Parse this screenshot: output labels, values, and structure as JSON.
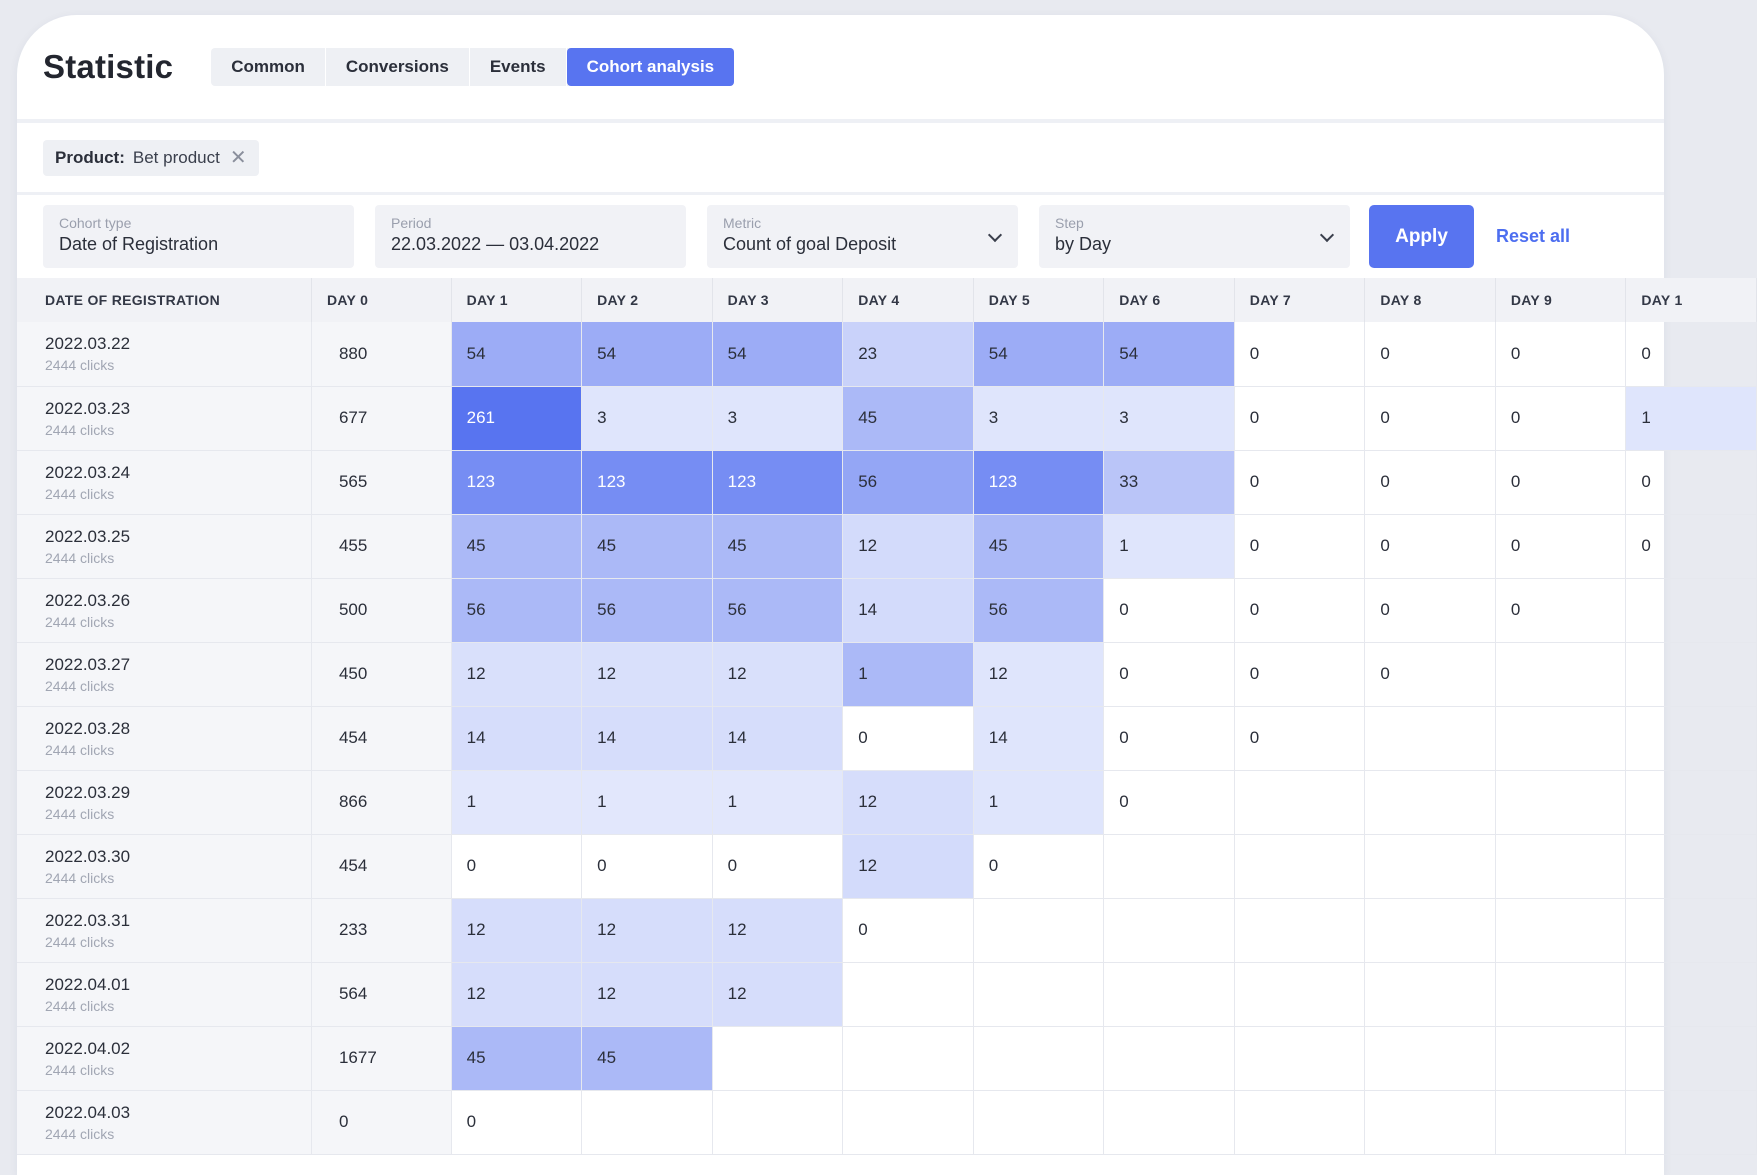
{
  "header": {
    "title": "Statistic",
    "tabs": [
      {
        "label": "Common",
        "active": false
      },
      {
        "label": "Conversions",
        "active": false
      },
      {
        "label": "Events",
        "active": false
      },
      {
        "label": "Cohort analysis",
        "active": true
      }
    ]
  },
  "filters": {
    "chip": {
      "key": "Product:",
      "value": "Bet product"
    }
  },
  "controls": {
    "cohort_type": {
      "label": "Cohort type",
      "value": "Date of Registration"
    },
    "period": {
      "label": "Period",
      "value": "22.03.2022 — 03.04.2022"
    },
    "metric": {
      "label": "Metric",
      "value": "Count of goal Deposit"
    },
    "step": {
      "label": "Step",
      "value": "by Day"
    },
    "apply_label": "Apply",
    "reset_label": "Reset all"
  },
  "colors": {
    "accent": "#5874f0",
    "heat_max": "#5874f0",
    "heat_min": "#eef1fd",
    "link": "#4d6ef0"
  },
  "table": {
    "columns": [
      "DATE OF REGISTRATION",
      "DAY 0",
      "DAY 1",
      "DAY 2",
      "DAY 3",
      "DAY 4",
      "DAY 5",
      "DAY 6",
      "DAY 7",
      "DAY 8",
      "DAY 9",
      "DAY 1"
    ],
    "rows": [
      {
        "date": "2022.03.22",
        "sub": "2444 clicks",
        "day0": "880",
        "cells": [
          "54",
          "54",
          "54",
          "23",
          "54",
          "54",
          "0",
          "0",
          "0",
          "0"
        ],
        "heat": [
          0.55,
          0.55,
          0.55,
          0.25,
          0.55,
          0.55,
          0,
          0,
          0,
          0
        ]
      },
      {
        "date": "2022.03.23",
        "sub": "2444 clicks",
        "day0": "677",
        "cells": [
          "261",
          "3",
          "3",
          "45",
          "3",
          "3",
          "0",
          "0",
          "0",
          "1"
        ],
        "heat": [
          1.0,
          0.1,
          0.1,
          0.45,
          0.1,
          0.1,
          0,
          0,
          0,
          0.1
        ]
      },
      {
        "date": "2022.03.24",
        "sub": "2444 clicks",
        "day0": "565",
        "cells": [
          "123",
          "123",
          "123",
          "56",
          "123",
          "33"
        ],
        "heat": [
          0.8,
          0.8,
          0.8,
          0.6,
          0.8,
          0.35
        ],
        "rest": [
          "0",
          "0",
          "0",
          "0"
        ]
      },
      {
        "date": "2022.03.25",
        "sub": "2444 clicks",
        "day0": "455",
        "cells": [
          "45",
          "45",
          "45",
          "12",
          "45",
          "1"
        ],
        "heat": [
          0.45,
          0.45,
          0.45,
          0.18,
          0.45,
          0.1
        ],
        "rest": [
          "0",
          "0",
          "0",
          "0"
        ]
      },
      {
        "date": "2022.03.26",
        "sub": "2444 clicks",
        "day0": "500",
        "cells": [
          "56",
          "56",
          "56",
          "14",
          "56",
          "0",
          "0",
          "0",
          "0"
        ],
        "heat": [
          0.45,
          0.45,
          0.45,
          0.18,
          0.45,
          0,
          0,
          0,
          0
        ]
      },
      {
        "date": "2022.03.27",
        "sub": "2444 clicks",
        "day0": "450",
        "cells": [
          "12",
          "12",
          "12",
          "1",
          "12",
          "0",
          "0",
          "0"
        ],
        "heat": [
          0.14,
          0.14,
          0.14,
          0.45,
          0.1,
          0,
          0,
          0
        ]
      },
      {
        "date": "2022.03.28",
        "sub": "2444 clicks",
        "day0": "454",
        "cells": [
          "14",
          "14",
          "14",
          "0",
          "14",
          "0",
          "0"
        ],
        "heat": [
          0.16,
          0.16,
          0.16,
          0,
          0.1,
          0,
          0
        ]
      },
      {
        "date": "2022.03.29",
        "sub": "2444 clicks",
        "day0": "866",
        "cells": [
          "1",
          "1",
          "1",
          "12",
          "1",
          "0"
        ],
        "heat": [
          0.08,
          0.08,
          0.08,
          0.16,
          0.1,
          0
        ]
      },
      {
        "date": "2022.03.30",
        "sub": "2444 clicks",
        "day0": "454",
        "cells": [
          "0",
          "0",
          "0",
          "12",
          "0"
        ],
        "heat": [
          0,
          0,
          0,
          0.18,
          0
        ]
      },
      {
        "date": "2022.03.31",
        "sub": "2444 clicks",
        "day0": "233",
        "cells": [
          "12",
          "12",
          "12",
          "0"
        ],
        "heat": [
          0.16,
          0.16,
          0.16,
          0
        ]
      },
      {
        "date": "2022.04.01",
        "sub": "2444 clicks",
        "day0": "564",
        "cells": [
          "12",
          "12",
          "12"
        ],
        "heat": [
          0.16,
          0.16,
          0.16
        ]
      },
      {
        "date": "2022.04.02",
        "sub": "2444 clicks",
        "day0": "1677",
        "cells": [
          "45",
          "45"
        ],
        "heat": [
          0.45,
          0.45
        ]
      },
      {
        "date": "2022.04.03",
        "sub": "2444 clicks",
        "day0": "0",
        "cells": [
          "0"
        ],
        "heat": [
          0
        ]
      }
    ]
  }
}
